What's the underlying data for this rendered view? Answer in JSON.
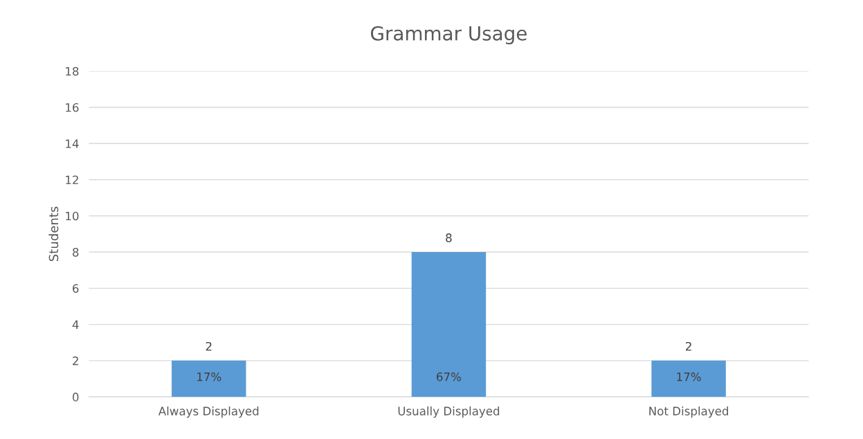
{
  "chart_data": {
    "type": "bar",
    "title": "Grammar Usage",
    "ylabel": "Students",
    "categories": [
      "Always Displayed",
      "Usually Displayed",
      "Not Displayed"
    ],
    "values": [
      2,
      8,
      2
    ],
    "color": "#5b9bd5",
    "data_labels": true,
    "ylim": [
      0,
      18
    ],
    "yticks": [
      0,
      2,
      4,
      6,
      8,
      10,
      12,
      14,
      16,
      18
    ],
    "grid": "y",
    "legend": false,
    "annotations": [
      "17%",
      "67%",
      "17%"
    ]
  }
}
